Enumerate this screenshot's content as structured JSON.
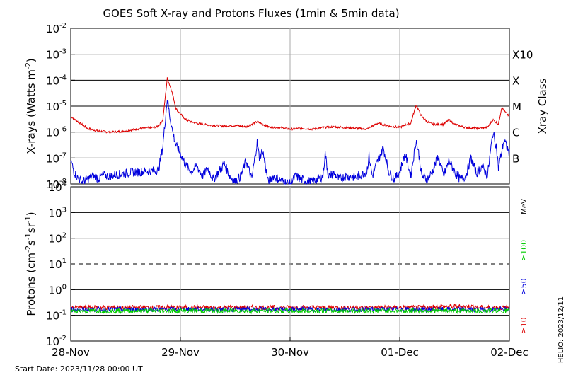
{
  "chart_data": [
    {
      "type": "line",
      "title": "GOES Soft X-ray and Protons Fluxes   (1min & 5min data)",
      "ylabel_main": "X-rays (Watts m",
      "ylabel_sup": "-2",
      "ylabel_end": ")",
      "y_scale": "log",
      "ylim": [
        1e-08,
        0.01
      ],
      "y_ticks": [
        {
          "base": "10",
          "exp": "-8"
        },
        {
          "base": "10",
          "exp": "-7"
        },
        {
          "base": "10",
          "exp": "-6"
        },
        {
          "base": "10",
          "exp": "-5"
        },
        {
          "base": "10",
          "exp": "-4"
        },
        {
          "base": "10",
          "exp": "-3"
        },
        {
          "base": "10",
          "exp": "-2"
        }
      ],
      "right_axis_label": "Xray Class",
      "class_labels": [
        {
          "label": "B",
          "value": 1e-07
        },
        {
          "label": "C",
          "value": 1e-06
        },
        {
          "label": "M",
          "value": 1e-05
        },
        {
          "label": "X",
          "value": 0.0001
        },
        {
          "label": "X10",
          "value": 0.001
        }
      ],
      "x_range_days": [
        0,
        4
      ],
      "series": [
        {
          "color": "#dd0000",
          "points": [
            [
              0,
              4e-06
            ],
            [
              0.05,
              2.8e-06
            ],
            [
              0.1,
              2e-06
            ],
            [
              0.15,
              1.4e-06
            ],
            [
              0.25,
              1.1e-06
            ],
            [
              0.35,
              1e-06
            ],
            [
              0.45,
              1.05e-06
            ],
            [
              0.55,
              1.2e-06
            ],
            [
              0.65,
              1.4e-06
            ],
            [
              0.75,
              1.5e-06
            ],
            [
              0.8,
              1.7e-06
            ],
            [
              0.84,
              3e-06
            ],
            [
              0.88,
              0.00012
            ],
            [
              0.92,
              4e-05
            ],
            [
              0.96,
              8e-06
            ],
            [
              1.0,
              5e-06
            ],
            [
              1.05,
              3e-06
            ],
            [
              1.1,
              2.5e-06
            ],
            [
              1.15,
              2.2e-06
            ],
            [
              1.2,
              2e-06
            ],
            [
              1.3,
              1.8e-06
            ],
            [
              1.4,
              1.7e-06
            ],
            [
              1.5,
              1.8e-06
            ],
            [
              1.6,
              1.6e-06
            ],
            [
              1.7,
              2.5e-06
            ],
            [
              1.8,
              1.6e-06
            ],
            [
              1.9,
              1.5e-06
            ],
            [
              2.0,
              1.3e-06
            ],
            [
              2.1,
              1.4e-06
            ],
            [
              2.2,
              1.3e-06
            ],
            [
              2.3,
              1.5e-06
            ],
            [
              2.4,
              1.6e-06
            ],
            [
              2.5,
              1.5e-06
            ],
            [
              2.6,
              1.4e-06
            ],
            [
              2.7,
              1.3e-06
            ],
            [
              2.8,
              2.2e-06
            ],
            [
              2.9,
              1.7e-06
            ],
            [
              3.0,
              1.5e-06
            ],
            [
              3.05,
              1.9e-06
            ],
            [
              3.1,
              2.2e-06
            ],
            [
              3.15,
              1.1e-05
            ],
            [
              3.2,
              4e-06
            ],
            [
              3.25,
              2.5e-06
            ],
            [
              3.3,
              2e-06
            ],
            [
              3.4,
              2e-06
            ],
            [
              3.45,
              3e-06
            ],
            [
              3.5,
              2e-06
            ],
            [
              3.6,
              1.5e-06
            ],
            [
              3.7,
              1.4e-06
            ],
            [
              3.8,
              1.5e-06
            ],
            [
              3.85,
              3e-06
            ],
            [
              3.9,
              2e-06
            ],
            [
              3.93,
              9e-06
            ],
            [
              3.96,
              6e-06
            ],
            [
              4.0,
              4e-06
            ]
          ]
        },
        {
          "color": "#0000dd",
          "points": [
            [
              0,
              8e-08
            ],
            [
              0.03,
              3e-08
            ],
            [
              0.06,
              1.8e-08
            ],
            [
              0.1,
              1.2e-08
            ],
            [
              0.15,
              1.5e-08
            ],
            [
              0.2,
              2e-08
            ],
            [
              0.25,
              1.6e-08
            ],
            [
              0.3,
              2.2e-08
            ],
            [
              0.35,
              2e-08
            ],
            [
              0.45,
              2.4e-08
            ],
            [
              0.55,
              2.8e-08
            ],
            [
              0.65,
              3e-08
            ],
            [
              0.75,
              3.2e-08
            ],
            [
              0.8,
              3.5e-08
            ],
            [
              0.84,
              3e-07
            ],
            [
              0.88,
              2e-05
            ],
            [
              0.9,
              5e-06
            ],
            [
              0.93,
              1e-06
            ],
            [
              0.96,
              3e-07
            ],
            [
              1.0,
              1.5e-07
            ],
            [
              1.05,
              5e-08
            ],
            [
              1.1,
              3e-08
            ],
            [
              1.15,
              5e-08
            ],
            [
              1.2,
              2e-08
            ],
            [
              1.25,
              4e-08
            ],
            [
              1.3,
              1.5e-08
            ],
            [
              1.35,
              3e-08
            ],
            [
              1.4,
              6e-08
            ],
            [
              1.45,
              2e-08
            ],
            [
              1.5,
              1.2e-08
            ],
            [
              1.55,
              2e-08
            ],
            [
              1.6,
              8e-08
            ],
            [
              1.65,
              1.5e-08
            ],
            [
              1.7,
              4e-07
            ],
            [
              1.72,
              1e-07
            ],
            [
              1.75,
              2e-07
            ],
            [
              1.8,
              1.2e-08
            ],
            [
              1.85,
              2e-08
            ],
            [
              1.9,
              1.5e-08
            ],
            [
              1.95,
              1.2e-08
            ],
            [
              2.0,
              1e-08
            ],
            [
              2.05,
              2e-08
            ],
            [
              2.1,
              1.5e-08
            ],
            [
              2.2,
              1.2e-08
            ],
            [
              2.3,
              2e-08
            ],
            [
              2.32,
              1.5e-07
            ],
            [
              2.35,
              2e-08
            ],
            [
              2.4,
              2.5e-08
            ],
            [
              2.45,
              1.5e-08
            ],
            [
              2.5,
              2e-08
            ],
            [
              2.6,
              1.8e-08
            ],
            [
              2.7,
              3e-08
            ],
            [
              2.72,
              1.2e-07
            ],
            [
              2.75,
              2e-08
            ],
            [
              2.8,
              8e-08
            ],
            [
              2.85,
              2.5e-07
            ],
            [
              2.9,
              3e-08
            ],
            [
              2.95,
              1.5e-08
            ],
            [
              3.0,
              3e-08
            ],
            [
              3.05,
              1.5e-07
            ],
            [
              3.1,
              2e-08
            ],
            [
              3.15,
              5e-07
            ],
            [
              3.18,
              1e-07
            ],
            [
              3.2,
              2e-08
            ],
            [
              3.25,
              1.5e-08
            ],
            [
              3.3,
              3e-08
            ],
            [
              3.35,
              1.2e-07
            ],
            [
              3.4,
              2e-08
            ],
            [
              3.45,
              8e-08
            ],
            [
              3.5,
              3e-08
            ],
            [
              3.55,
              1.5e-08
            ],
            [
              3.6,
              2e-08
            ],
            [
              3.65,
              1e-07
            ],
            [
              3.7,
              2.5e-08
            ],
            [
              3.75,
              5e-08
            ],
            [
              3.8,
              2e-08
            ],
            [
              3.85,
              1e-06
            ],
            [
              3.88,
              3e-07
            ],
            [
              3.9,
              4e-08
            ],
            [
              3.95,
              5e-07
            ],
            [
              4.0,
              1.5e-07
            ]
          ]
        }
      ]
    },
    {
      "type": "line",
      "ylabel_main": "Protons (cm",
      "ylabel_sup1": "-2",
      "ylabel_mid1": "s",
      "ylabel_sup2": "-1",
      "ylabel_mid2": "sr",
      "ylabel_sup3": "-1",
      "ylabel_end": ")",
      "y_scale": "log",
      "ylim": [
        0.01,
        10000
      ],
      "y_ticks": [
        {
          "base": "10",
          "exp": "-2"
        },
        {
          "base": "10",
          "exp": "-1"
        },
        {
          "base": "10",
          "exp": "0"
        },
        {
          "base": "10",
          "exp": "1"
        },
        {
          "base": "10",
          "exp": "2"
        },
        {
          "base": "10",
          "exp": "3"
        },
        {
          "base": "10",
          "exp": "4"
        }
      ],
      "threshold_line": 10,
      "unit_label": "MeV",
      "energy_labels": [
        {
          "label": "≥100",
          "color": "#00cc00"
        },
        {
          "label": "≥50",
          "color": "#0000dd"
        },
        {
          "label": "≥10",
          "color": "#dd0000"
        }
      ],
      "x_range_days": [
        0,
        4
      ],
      "series": [
        {
          "color": "#dd0000",
          "baseline": 0.2
        },
        {
          "color": "#0000dd",
          "baseline": 0.17
        },
        {
          "color": "#00cc00",
          "baseline": 0.15
        }
      ]
    }
  ],
  "x_tick_labels": [
    "28-Nov",
    "29-Nov",
    "30-Nov",
    "01-Dec",
    "02-Dec"
  ],
  "start_date": "Start Date: 2023/11/28 00:00 UT",
  "helio_label": "HELIO: 2023/12/11"
}
